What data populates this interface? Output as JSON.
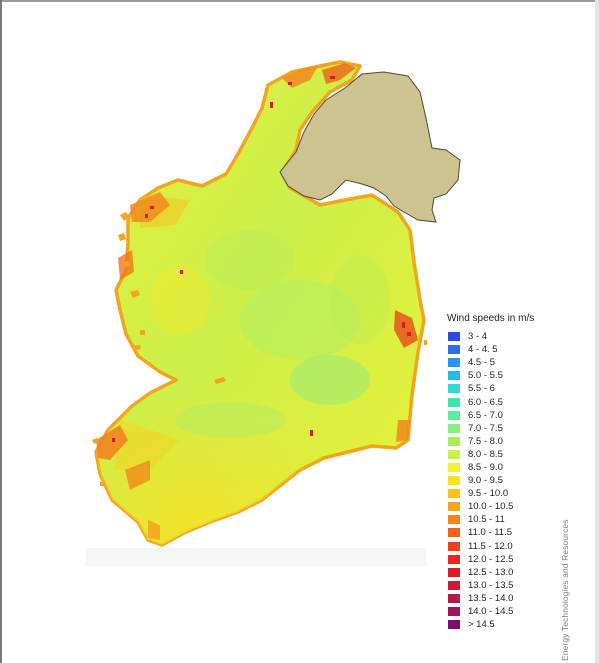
{
  "legend": {
    "title": "Wind speeds in m/s",
    "items": [
      {
        "label": "3 - 4",
        "color": "#2a49e6"
      },
      {
        "label": "4 - 4. 5",
        "color": "#2f6ee8"
      },
      {
        "label": "4.5 - 5",
        "color": "#2c95ea"
      },
      {
        "label": "5.0 - 5.5",
        "color": "#25bde6"
      },
      {
        "label": "5.5 - 6",
        "color": "#2fd8d0"
      },
      {
        "label": "6.0 - 6.5",
        "color": "#3ce4b0"
      },
      {
        "label": "6.5 - 7.0",
        "color": "#5ced9c"
      },
      {
        "label": "7.0 - 7.5",
        "color": "#86ef7e"
      },
      {
        "label": "7.5 - 8.0",
        "color": "#a7ef57"
      },
      {
        "label": "8.0 - 8.5",
        "color": "#cbef48"
      },
      {
        "label": "8.5 - 9.0",
        "color": "#ecf23e"
      },
      {
        "label": "9.0 - 9.5",
        "color": "#fbe21a"
      },
      {
        "label": "9.5 - 10.0",
        "color": "#f8c21a"
      },
      {
        "label": "10.0 - 10.5",
        "color": "#f6a41c"
      },
      {
        "label": "10.5 - 11",
        "color": "#f4821d"
      },
      {
        "label": "11.0 - 11.5",
        "color": "#f2621d"
      },
      {
        "label": "11.5 - 12.0",
        "color": "#ef3f1e"
      },
      {
        "label": "12.0 - 12.5",
        "color": "#e8251f"
      },
      {
        "label": "12.5 - 13.0",
        "color": "#d81d25"
      },
      {
        "label": "13.0 - 13.5",
        "color": "#c71d35"
      },
      {
        "label": "13.5 - 14.0",
        "color": "#b31d45"
      },
      {
        "label": "14.0 - 14.5",
        "color": "#9c1656"
      },
      {
        "label": "> 14.5",
        "color": "#7d0f6c"
      }
    ]
  },
  "credit": "Energy Technologies and Resources",
  "colors": {
    "northern_ireland": "#cdc390",
    "land_base": "#dcef3a",
    "coast_orange": "#f6a41c",
    "high_red": "#d81d25"
  }
}
